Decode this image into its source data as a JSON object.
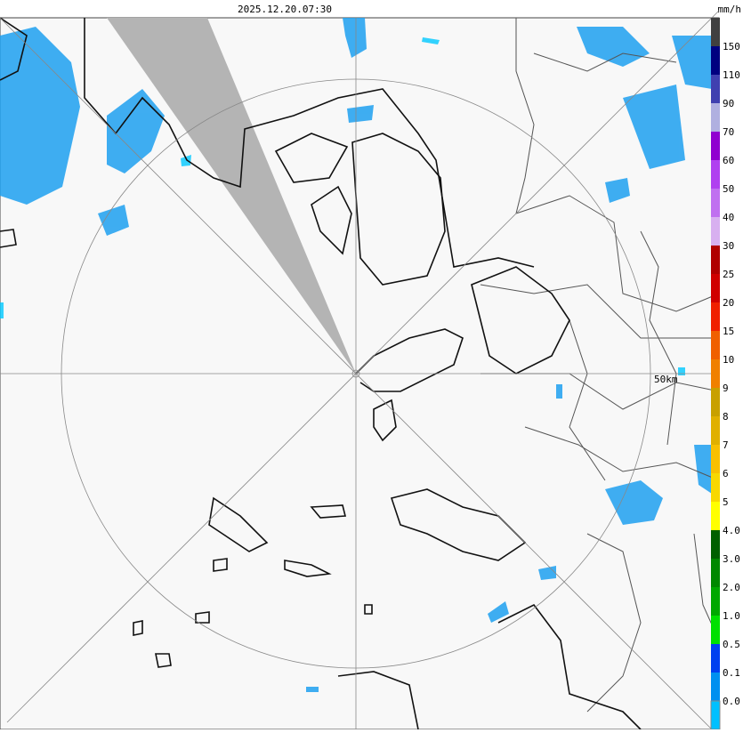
{
  "header": {
    "timestamp": "2025.12.20.07:30",
    "unit": "mm/h"
  },
  "map": {
    "range_label": "50km"
  },
  "legend": {
    "entries": [
      {
        "label": "150",
        "color": "#000080"
      },
      {
        "label": "110",
        "color": "#4040b0"
      },
      {
        "label": "90",
        "color": "#b0b0e0"
      },
      {
        "label": "70",
        "color": "#9000d0"
      },
      {
        "label": "60",
        "color": "#b040f0"
      },
      {
        "label": "50",
        "color": "#c070f0"
      },
      {
        "label": "40",
        "color": "#d8b0f0"
      },
      {
        "label": "30",
        "color": "#b00000"
      },
      {
        "label": "25",
        "color": "#d00000"
      },
      {
        "label": "20",
        "color": "#f02000"
      },
      {
        "label": "15",
        "color": "#f06000"
      },
      {
        "label": "10",
        "color": "#f08000"
      },
      {
        "label": "9",
        "color": "#c8a000"
      },
      {
        "label": "8",
        "color": "#e0b000"
      },
      {
        "label": "7",
        "color": "#f8c000"
      },
      {
        "label": "6",
        "color": "#f8d800"
      },
      {
        "label": "5",
        "color": "#ffff00"
      },
      {
        "label": "4.0",
        "color": "#006000"
      },
      {
        "label": "3.0",
        "color": "#008800"
      },
      {
        "label": "2.0",
        "color": "#00a800"
      },
      {
        "label": "1.0",
        "color": "#00e000"
      },
      {
        "label": "0.5",
        "color": "#0040f0"
      },
      {
        "label": "0.1",
        "color": "#0090f0"
      },
      {
        "label": "0.0",
        "color": "#00c0ff"
      }
    ],
    "top_color": "#404040",
    "bottom_color": "#ffffff"
  }
}
